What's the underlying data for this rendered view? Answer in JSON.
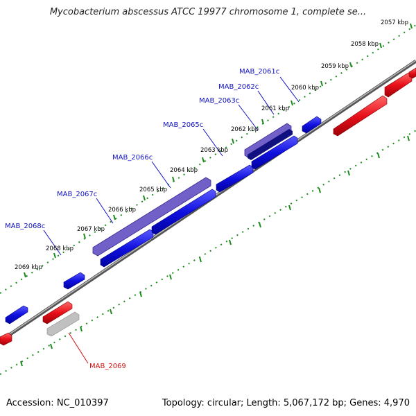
{
  "title": "Mycobacterium abscessus ATCC 19977 chromosome 1, complete se...",
  "footer": {
    "accession": "Accession: NC_010397",
    "stats": "Topology: circular; Length: 5,067,172 bp; Genes: 4,970"
  },
  "ruler_ticks": [
    "2057 kbp",
    "2058 kbp",
    "2059 kbp",
    "2060 kbp",
    "2061 kbp",
    "2062 kbp",
    "2063 kbp",
    "2064 kbp",
    "2065 kbp",
    "2066 kbp",
    "2067 kbp",
    "2068 kbp",
    "2069 kbp"
  ],
  "gene_labels": [
    "MAB_2061c",
    "MAB_2062c",
    "MAB_2063c",
    "MAB_2065c",
    "MAB_2066c",
    "MAB_2067c",
    "MAB_2068c",
    "MAB_2069"
  ],
  "colors": {
    "forward": "#e8101a",
    "reverse": "#1010e0",
    "reverse_highlight": "#7060c8",
    "reverse_dark": "#101080",
    "pseudo": "#b8b8b8",
    "backbone": "#777777",
    "dots": "#1a8a1a",
    "label_reverse": "#1010c0",
    "label_forward": "#d01010"
  }
}
